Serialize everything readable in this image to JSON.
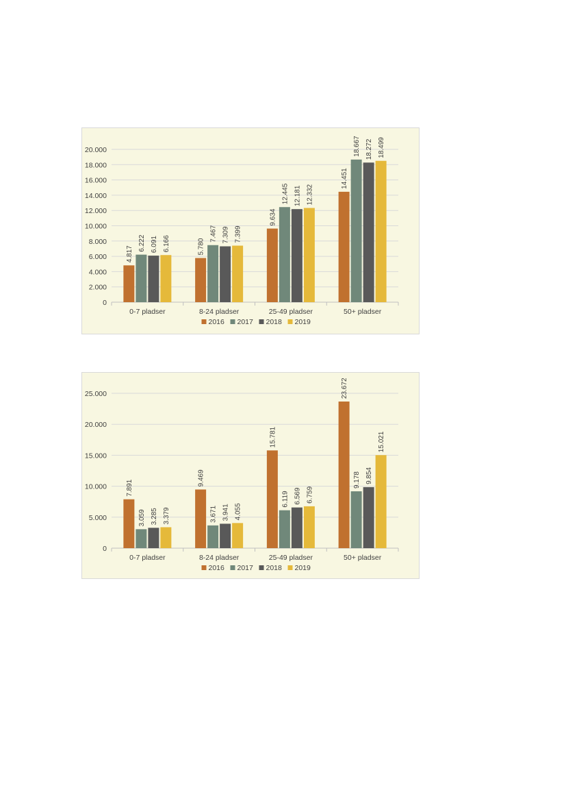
{
  "chart_data": [
    {
      "type": "bar",
      "categories": [
        "0-7 pladser",
        "8-24 pladser",
        "25-49 pladser",
        "50+ pladser"
      ],
      "series": [
        {
          "name": "2016",
          "color": "#c0712f",
          "values": [
            4817,
            5780,
            9634,
            14451
          ],
          "labels": [
            "4.817",
            "5.780",
            "9.634",
            "14.451"
          ]
        },
        {
          "name": "2017",
          "color": "#70887a",
          "values": [
            6222,
            7467,
            12445,
            18667
          ],
          "labels": [
            "6.222",
            "7.467",
            "12.445",
            "18.667"
          ]
        },
        {
          "name": "2018",
          "color": "#595959",
          "values": [
            6091,
            7309,
            12181,
            18272
          ],
          "labels": [
            "6.091",
            "7.309",
            "12.181",
            "18.272"
          ]
        },
        {
          "name": "2019",
          "color": "#e5b93a",
          "values": [
            6166,
            7399,
            12332,
            18499
          ],
          "labels": [
            "6.166",
            "7.399",
            "12.332",
            "18.499"
          ]
        }
      ],
      "ylim": [
        0,
        20000
      ],
      "yticks": [
        0,
        2000,
        4000,
        6000,
        8000,
        10000,
        12000,
        14000,
        16000,
        18000,
        20000
      ],
      "ytick_labels": [
        "0",
        "2.000",
        "4.000",
        "6.000",
        "8.000",
        "10.000",
        "12.000",
        "14.000",
        "16.000",
        "18.000",
        "20.000"
      ],
      "grid": true,
      "legend": "bottom",
      "title": "",
      "xlabel": "",
      "ylabel": ""
    },
    {
      "type": "bar",
      "categories": [
        "0-7 pladser",
        "8-24 pladser",
        "25-49 pladser",
        "50+ pladser"
      ],
      "series": [
        {
          "name": "2016",
          "color": "#c0712f",
          "values": [
            7891,
            9469,
            15781,
            23672
          ],
          "labels": [
            "7.891",
            "9.469",
            "15.781",
            "23.672"
          ]
        },
        {
          "name": "2017",
          "color": "#70887a",
          "values": [
            3059,
            3671,
            6119,
            9178
          ],
          "labels": [
            "3.059",
            "3.671",
            "6.119",
            "9.178"
          ]
        },
        {
          "name": "2018",
          "color": "#595959",
          "values": [
            3285,
            3941,
            6569,
            9854
          ],
          "labels": [
            "3.285",
            "3.941",
            "6.569",
            "9.854"
          ]
        },
        {
          "name": "2019",
          "color": "#e5b93a",
          "values": [
            3379,
            4055,
            6759,
            15021
          ],
          "labels": [
            "3.379",
            "4.055",
            "6.759",
            "15.021"
          ]
        }
      ],
      "ylim": [
        0,
        25000
      ],
      "yticks": [
        0,
        5000,
        10000,
        15000,
        20000,
        25000
      ],
      "ytick_labels": [
        "0",
        "5.000",
        "10.000",
        "15.000",
        "20.000",
        "25.000"
      ],
      "grid": true,
      "legend": "bottom",
      "title": "",
      "xlabel": "",
      "ylabel": ""
    }
  ]
}
